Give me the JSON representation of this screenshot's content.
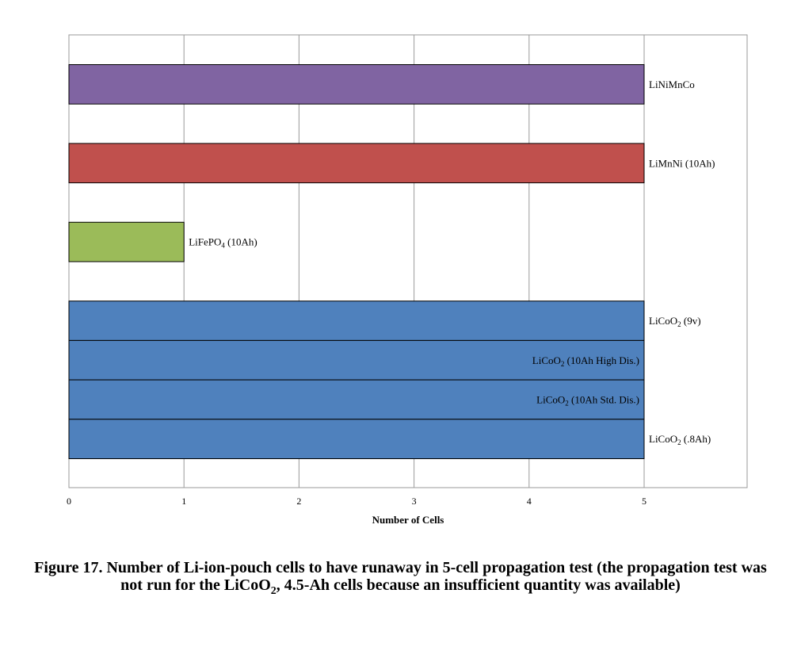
{
  "chart_data": {
    "type": "bar",
    "orientation": "horizontal",
    "xlabel": "Number of Cells",
    "xlim": [
      0,
      5.9
    ],
    "xticks": [
      0,
      1,
      2,
      3,
      4,
      5
    ],
    "grid": true,
    "legend": "none",
    "bars": [
      {
        "name": "LiNiMnCo",
        "label_main": "LiNiMnCo",
        "label_sub": "",
        "label_rest": "",
        "value": 5,
        "color": "#8064A2",
        "label_pos": "outside"
      },
      {
        "name": "LiMnNi (10Ah)",
        "label_main": "LiMnNi (10Ah)",
        "label_sub": "",
        "label_rest": "",
        "value": 5,
        "color": "#C0504D",
        "label_pos": "outside"
      },
      {
        "name": "LiFePO4 (10Ah)",
        "label_main": "LiFePO",
        "label_sub": "4",
        "label_rest": " (10Ah)",
        "value": 1,
        "color": "#9BBB59",
        "label_pos": "outside"
      },
      {
        "name": "LiCoO2 (9v)",
        "label_main": "LiCoO",
        "label_sub": "2",
        "label_rest": " (9v)",
        "value": 5,
        "color": "#4F81BD",
        "label_pos": "outside"
      },
      {
        "name": "LiCoO2 (10Ah High Dis.)",
        "label_main": "LiCoO",
        "label_sub": "2",
        "label_rest": " (10Ah High Dis.)",
        "value": 5,
        "color": "#4F81BD",
        "label_pos": "inside"
      },
      {
        "name": "LiCoO2 (10Ah Std. Dis.)",
        "label_main": "LiCoO",
        "label_sub": "2",
        "label_rest": " (10Ah Std. Dis.)",
        "value": 5,
        "color": "#4F81BD",
        "label_pos": "inside"
      },
      {
        "name": "LiCoO2 (.8Ah)",
        "label_main": "LiCoO",
        "label_sub": "2",
        "label_rest": " (.8Ah)",
        "value": 5,
        "color": "#4F81BD",
        "label_pos": "outside"
      }
    ],
    "slots": [
      "LiNiMnCo",
      "gap",
      "LiMnNi (10Ah)",
      "gap",
      "LiFePO4 (10Ah)",
      "gap",
      "LiCoO2 (9v)",
      "LiCoO2 (10Ah High Dis.)",
      "LiCoO2 (10Ah Std. Dis.)",
      "LiCoO2 (.8Ah)"
    ]
  },
  "caption": {
    "part1": "Figure 17. Number of Li-ion-pouch cells to have runaway in 5-cell propagation test (the propagation test was not run for the LiCoO",
    "sub": "2",
    "part2": ", 4.5-Ah cells because an insufficient quantity was available)"
  }
}
